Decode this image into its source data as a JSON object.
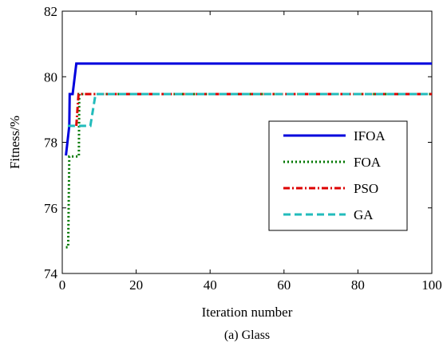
{
  "chart_data": {
    "type": "line",
    "title": "",
    "caption": "(a) Glass",
    "xlabel": "Iteration number",
    "ylabel": "Fitness/%",
    "xlim": [
      0,
      100
    ],
    "ylim": [
      74,
      82
    ],
    "xticks": [
      0,
      20,
      40,
      60,
      80,
      100
    ],
    "yticks": [
      74,
      76,
      78,
      80,
      82
    ],
    "grid": false,
    "legend_position": "right",
    "series": [
      {
        "name": "IFOA",
        "color": "#0000dd",
        "style": "solid",
        "x": [
          1,
          1.9,
          2,
          2.8,
          3.8,
          4,
          100
        ],
        "y": [
          77.6,
          78.5,
          79.47,
          79.47,
          80.4,
          80.4,
          80.4
        ]
      },
      {
        "name": "FOA",
        "color": "#007700",
        "style": "dotted",
        "x": [
          1,
          1.6,
          1.9,
          4.5,
          4.6,
          4.8,
          100
        ],
        "y": [
          74.8,
          74.8,
          77.57,
          77.57,
          79.47,
          79.47,
          79.47
        ]
      },
      {
        "name": "PSO",
        "color": "#dd0000",
        "style": "dashdot",
        "x": [
          3.8,
          4.4,
          4.6,
          100
        ],
        "y": [
          78.5,
          79.47,
          79.47,
          79.47
        ]
      },
      {
        "name": "GA",
        "color": "#22bbbb",
        "style": "dashed",
        "x": [
          1.5,
          7.6,
          9.0,
          100
        ],
        "y": [
          78.5,
          78.5,
          79.47,
          79.47
        ]
      }
    ]
  }
}
